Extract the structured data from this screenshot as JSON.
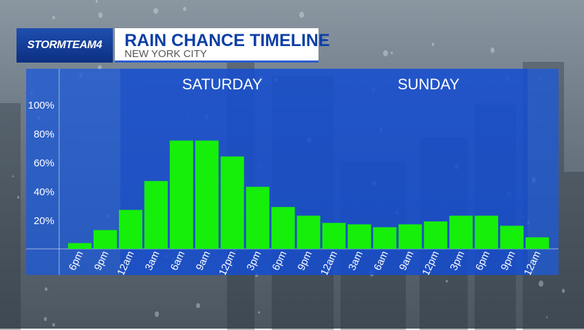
{
  "header": {
    "brand": "STORMTEAM4",
    "title": "RAIN CHANCE TIMELINE",
    "subtitle": "NEW YORK CITY"
  },
  "chart_data": {
    "type": "bar",
    "title": "RAIN CHANCE TIMELINE",
    "subtitle": "NEW YORK CITY",
    "day_labels": [
      "SATURDAY",
      "SUNDAY"
    ],
    "categories": [
      "6pm",
      "9pm",
      "12am",
      "3am",
      "6am",
      "9am",
      "12pm",
      "3pm",
      "6pm",
      "9pm",
      "12am",
      "3am",
      "6am",
      "9am",
      "12pm",
      "3pm",
      "6pm",
      "9pm",
      "12am"
    ],
    "values": [
      4,
      13,
      27,
      47,
      75,
      75,
      64,
      43,
      29,
      23,
      18,
      17,
      15,
      17,
      19,
      23,
      23,
      16,
      8
    ],
    "yticks": [
      "20%",
      "40%",
      "60%",
      "80%",
      "100%"
    ],
    "ylim": [
      0,
      100
    ],
    "bar_color": "#16ef0a",
    "grid": false
  }
}
